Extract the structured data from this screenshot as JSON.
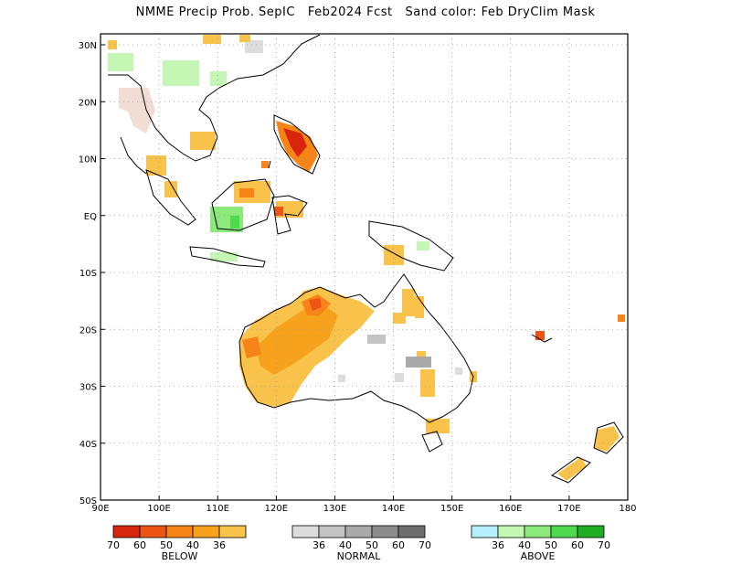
{
  "title": "NMME Precip Prob. SepIC   Feb2024 Fcst   Sand color: Feb DryClim Mask",
  "map": {
    "region": "Maritime Continent / Australia / Western Pacific",
    "lon_range": [
      90,
      180
    ],
    "lat_range": [
      -50,
      32
    ],
    "grid": true,
    "x_ticks": [
      "90E",
      "100E",
      "110E",
      "120E",
      "130E",
      "140E",
      "150E",
      "160E",
      "170E",
      "180"
    ],
    "y_ticks": [
      "30N",
      "20N",
      "10N",
      "EQ",
      "10S",
      "20S",
      "30S",
      "40S",
      "50S"
    ],
    "colors": {
      "below_36": "#f9c24a",
      "below_40": "#f7a21c",
      "below_50": "#f68416",
      "below_60": "#ec5514",
      "below_70": "#d8260d",
      "normal_36": "#dcdcdc",
      "normal_40": "#c4c4c4",
      "normal_50": "#aaaaaa",
      "normal_60": "#8c8c8c",
      "normal_70": "#6e6e6e",
      "above_36": "#b4f0ff",
      "above_40": "#c4f7b4",
      "above_50": "#8ce97c",
      "above_60": "#4fd94f",
      "above_70": "#1fad23",
      "dry_mask": "#f2ddd5"
    }
  },
  "legend": {
    "below": {
      "label": "BELOW",
      "values": [
        "70",
        "60",
        "50",
        "40",
        "36"
      ]
    },
    "normal": {
      "label": "NORMAL",
      "values": [
        "36",
        "40",
        "50",
        "60",
        "70"
      ]
    },
    "above": {
      "label": "ABOVE",
      "values": [
        "36",
        "40",
        "50",
        "60",
        "70"
      ]
    }
  }
}
